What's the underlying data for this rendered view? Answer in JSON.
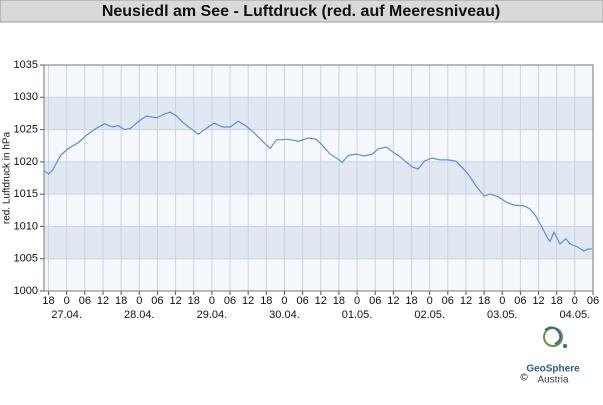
{
  "chart_data": {
    "type": "line",
    "title": "Neusiedl am See - Luftdruck (red. auf Meeresniveau)",
    "y_label": "red. Luftdruck in hPa",
    "color": "#5b8fd9",
    "ylim": [
      1000,
      1035
    ],
    "yticks": [
      1000,
      1005,
      1010,
      1015,
      1020,
      1025,
      1030,
      1035
    ],
    "xlim": [
      -1.5,
      180
    ],
    "xticks": [
      {
        "value": 0,
        "label": "18"
      },
      {
        "value": 6,
        "label": "0"
      },
      {
        "value": 12,
        "label": "06"
      },
      {
        "value": 18,
        "label": "12"
      },
      {
        "value": 24,
        "label": "18"
      },
      {
        "value": 30,
        "label": "0"
      },
      {
        "value": 36,
        "label": "06"
      },
      {
        "value": 42,
        "label": "12"
      },
      {
        "value": 48,
        "label": "18"
      },
      {
        "value": 54,
        "label": "0"
      },
      {
        "value": 60,
        "label": "06"
      },
      {
        "value": 66,
        "label": "12"
      },
      {
        "value": 72,
        "label": "18"
      },
      {
        "value": 78,
        "label": "0"
      },
      {
        "value": 84,
        "label": "06"
      },
      {
        "value": 90,
        "label": "12"
      },
      {
        "value": 96,
        "label": "18"
      },
      {
        "value": 102,
        "label": "0"
      },
      {
        "value": 108,
        "label": "06"
      },
      {
        "value": 114,
        "label": "12"
      },
      {
        "value": 120,
        "label": "18"
      },
      {
        "value": 126,
        "label": "0"
      },
      {
        "value": 132,
        "label": "06"
      },
      {
        "value": 138,
        "label": "12"
      },
      {
        "value": 144,
        "label": "18"
      },
      {
        "value": 150,
        "label": "0"
      },
      {
        "value": 156,
        "label": "06"
      },
      {
        "value": 162,
        "label": "12"
      },
      {
        "value": 168,
        "label": "18"
      },
      {
        "value": 174,
        "label": "0"
      },
      {
        "value": 180,
        "label": "06"
      }
    ],
    "date_ticks": [
      {
        "value": 6,
        "label": "27.04."
      },
      {
        "value": 30,
        "label": "28.04."
      },
      {
        "value": 54,
        "label": "29.04."
      },
      {
        "value": 78,
        "label": "30.04."
      },
      {
        "value": 102,
        "label": "01.05."
      },
      {
        "value": 126,
        "label": "02.05."
      },
      {
        "value": 150,
        "label": "03.05."
      },
      {
        "value": 174,
        "label": "04.05."
      }
    ],
    "grid": true,
    "x": [
      -1.3,
      0,
      1.3,
      4,
      6.6,
      9.9,
      12.5,
      15.8,
      18.5,
      21.1,
      23.1,
      25.1,
      27.1,
      30.4,
      32.4,
      35.7,
      38.3,
      40.3,
      42.3,
      44.2,
      46.9,
      49.5,
      52.2,
      54.8,
      57.5,
      60.1,
      62.7,
      65.4,
      68,
      70.7,
      73.3,
      75.3,
      79.2,
      82.6,
      85.9,
      88.5,
      90.5,
      93.1,
      95.8,
      97.1,
      99.1,
      101.7,
      104.4,
      107,
      109,
      111.6,
      114.2,
      116.2,
      118.2,
      120.2,
      122.2,
      124.2,
      126.8,
      129.4,
      132.1,
      134.7,
      136,
      138.7,
      141.3,
      144,
      145.9,
      148.6,
      151.2,
      153.9,
      157.2,
      159.2,
      161.1,
      163.1,
      165.1,
      165.8,
      167.1,
      169.1,
      171,
      172.4,
      175,
      177,
      178.3,
      179.6
    ],
    "values": [
      1018.6,
      1018.1,
      1018.7,
      1021.0,
      1022.1,
      1023.0,
      1024.1,
      1025.2,
      1025.9,
      1025.4,
      1025.6,
      1025.0,
      1025.2,
      1026.5,
      1027.1,
      1026.8,
      1027.4,
      1027.7,
      1027.1,
      1026.2,
      1025.2,
      1024.3,
      1025.2,
      1026.0,
      1025.4,
      1025.4,
      1026.3,
      1025.5,
      1024.5,
      1023.2,
      1022.1,
      1023.4,
      1023.5,
      1023.2,
      1023.7,
      1023.5,
      1022.6,
      1021.2,
      1020.4,
      1019.9,
      1021.0,
      1021.2,
      1020.9,
      1021.2,
      1022.0,
      1022.3,
      1021.4,
      1020.8,
      1020.0,
      1019.2,
      1018.9,
      1020.1,
      1020.6,
      1020.3,
      1020.3,
      1020.1,
      1019.5,
      1018.1,
      1016.3,
      1014.7,
      1015.0,
      1014.6,
      1013.8,
      1013.3,
      1013.2,
      1012.7,
      1011.6,
      1009.9,
      1008.1,
      1007.7,
      1009.1,
      1007.3,
      1008.1,
      1007.3,
      1006.8,
      1006.2,
      1006.5,
      1006.5
    ]
  },
  "logo": {
    "name": "GeoSphere",
    "country": "Austria",
    "copyright": "©"
  }
}
